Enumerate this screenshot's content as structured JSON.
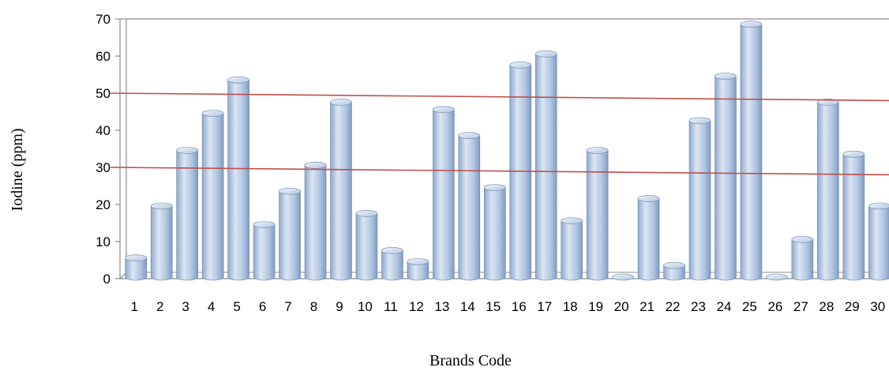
{
  "chart_data": {
    "type": "bar",
    "style": "3d-cylinder",
    "xlabel": "Brands Code",
    "ylabel": "Iodine (ppm)",
    "ylim": [
      0,
      70
    ],
    "yticks": [
      0,
      10,
      20,
      30,
      40,
      50,
      60,
      70
    ],
    "grid": false,
    "categories": [
      "1",
      "2",
      "3",
      "4",
      "5",
      "6",
      "7",
      "8",
      "9",
      "10",
      "11",
      "12",
      "13",
      "14",
      "15",
      "16",
      "17",
      "18",
      "19",
      "20",
      "21",
      "22",
      "23",
      "24",
      "25",
      "26",
      "27",
      "28",
      "29",
      "30"
    ],
    "values": [
      6,
      20,
      35,
      45,
      54,
      15,
      24,
      31,
      48,
      18,
      8,
      5,
      46,
      39,
      25,
      58,
      61,
      16,
      35,
      0,
      22,
      4,
      43,
      55,
      69,
      0,
      11,
      48,
      34,
      20
    ],
    "reference_lines": [
      {
        "y_start": 50,
        "y_end": 48,
        "color": "#c0504d"
      },
      {
        "y_start": 30,
        "y_end": 28,
        "color": "#c0504d"
      }
    ],
    "colors": {
      "bar_light": "#dbe6f4",
      "bar_mid": "#b3c7e2",
      "bar_dark": "#7f9cc4",
      "bar_edge": "#6f86a6",
      "frame": "#8c8c8c",
      "reference": "#c0504d"
    }
  }
}
